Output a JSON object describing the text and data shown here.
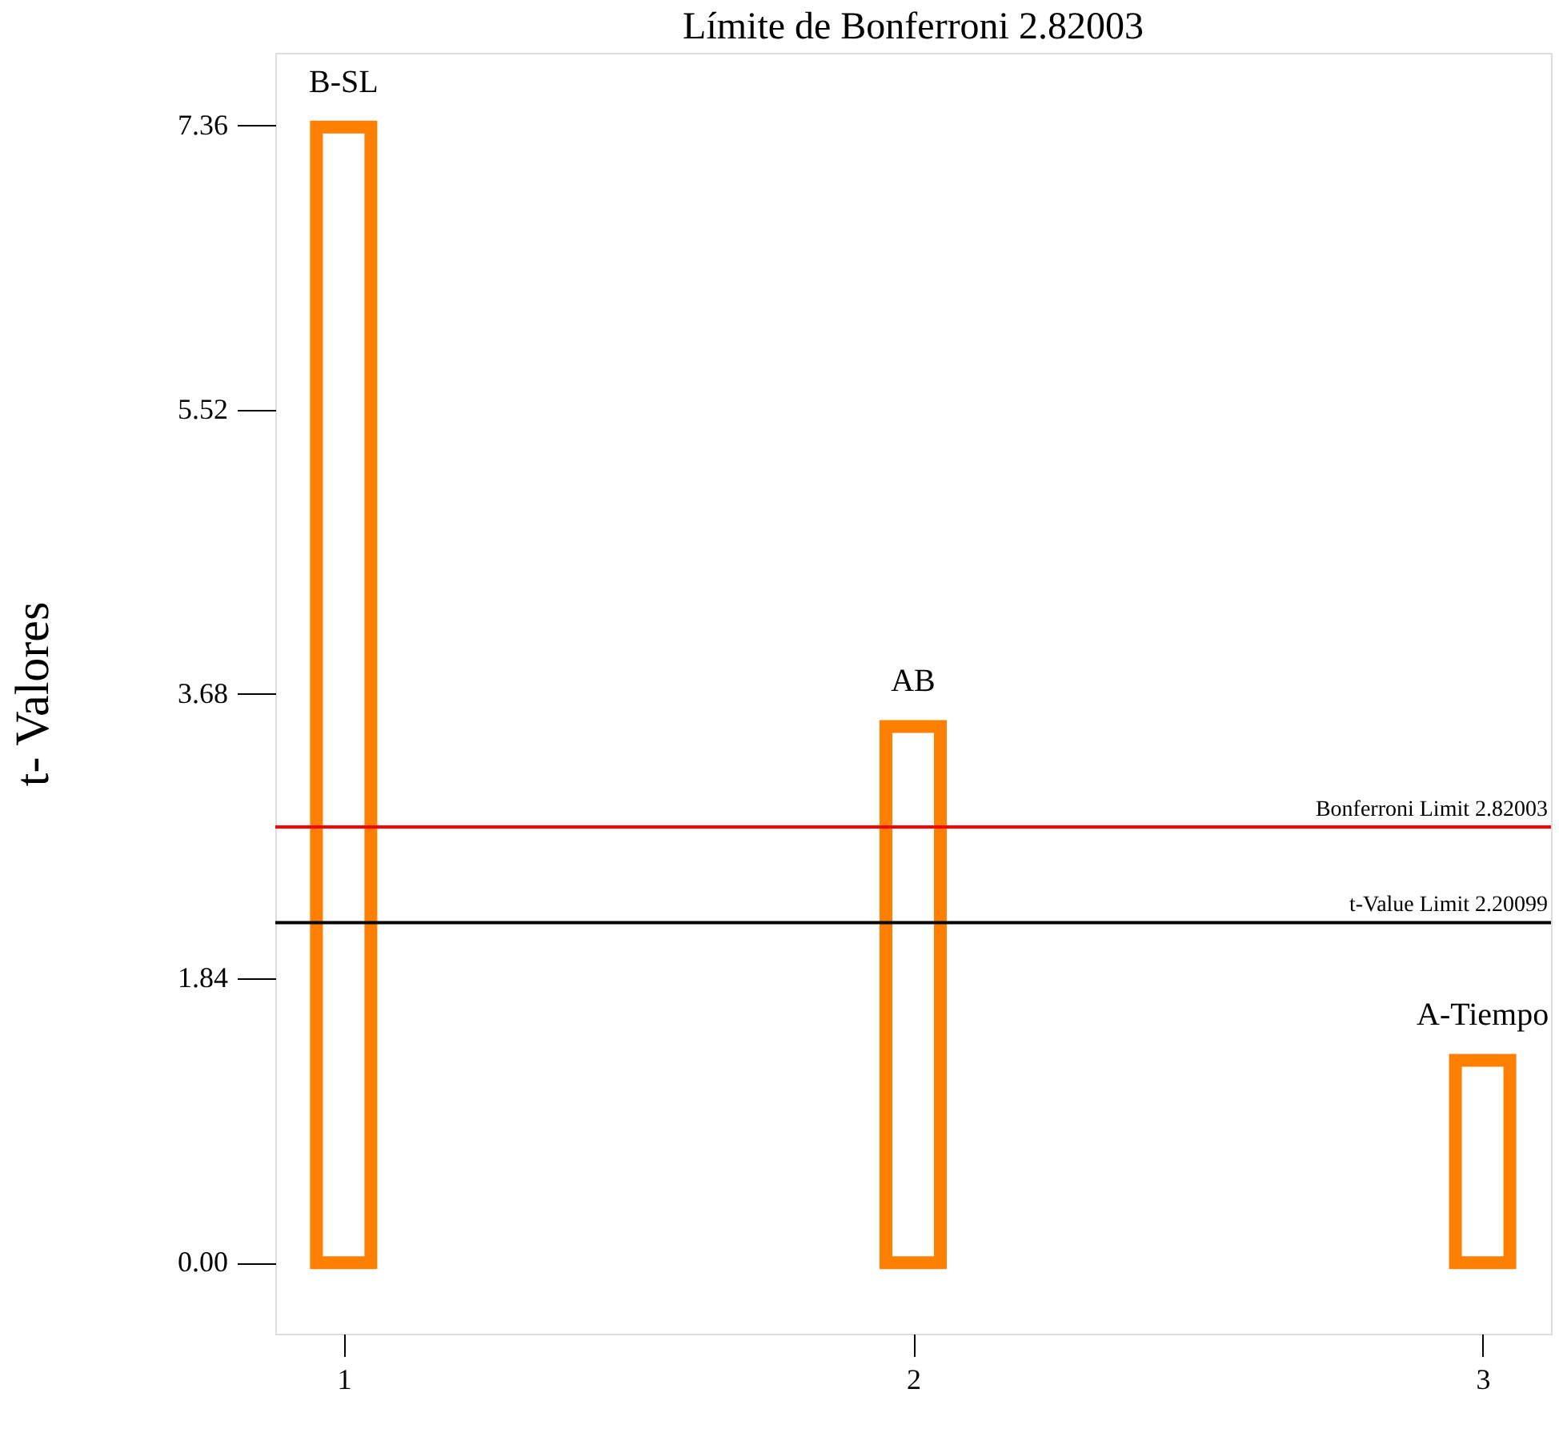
{
  "chart_data": {
    "type": "bar",
    "title": "Límite de Bonferroni 2.82003",
    "ylabel": "t- Valores",
    "x": [
      1,
      2,
      3
    ],
    "series": [
      {
        "color": "#ff8000",
        "values": [
          7.35,
          3.47,
          1.31
        ]
      }
    ],
    "xlim": [
      0.88,
      3.12
    ],
    "xticks": [
      1,
      2,
      3
    ],
    "ylim": [
      -0.46,
      7.83
    ],
    "yticks": [
      {
        "value": 0,
        "label": "0.00"
      },
      1.84,
      3.68,
      5.52,
      7.36
    ],
    "ref_lines": [
      {
        "axis": "y",
        "value": 2.82003,
        "label": "Bonferroni Limit 2.82003",
        "color": "#ff0000"
      },
      {
        "axis": "y",
        "value": 2.20099,
        "label": "t-Value Limit 2.20099",
        "color": "#000000"
      }
    ],
    "annotations": [
      {
        "text": "B-SL",
        "x": 1,
        "y": 7.35
      },
      {
        "text": "AB",
        "x": 2,
        "y": 3.47
      },
      {
        "text": "A-Tiempo",
        "x": 3,
        "y": 1.31
      }
    ],
    "grid": false
  }
}
